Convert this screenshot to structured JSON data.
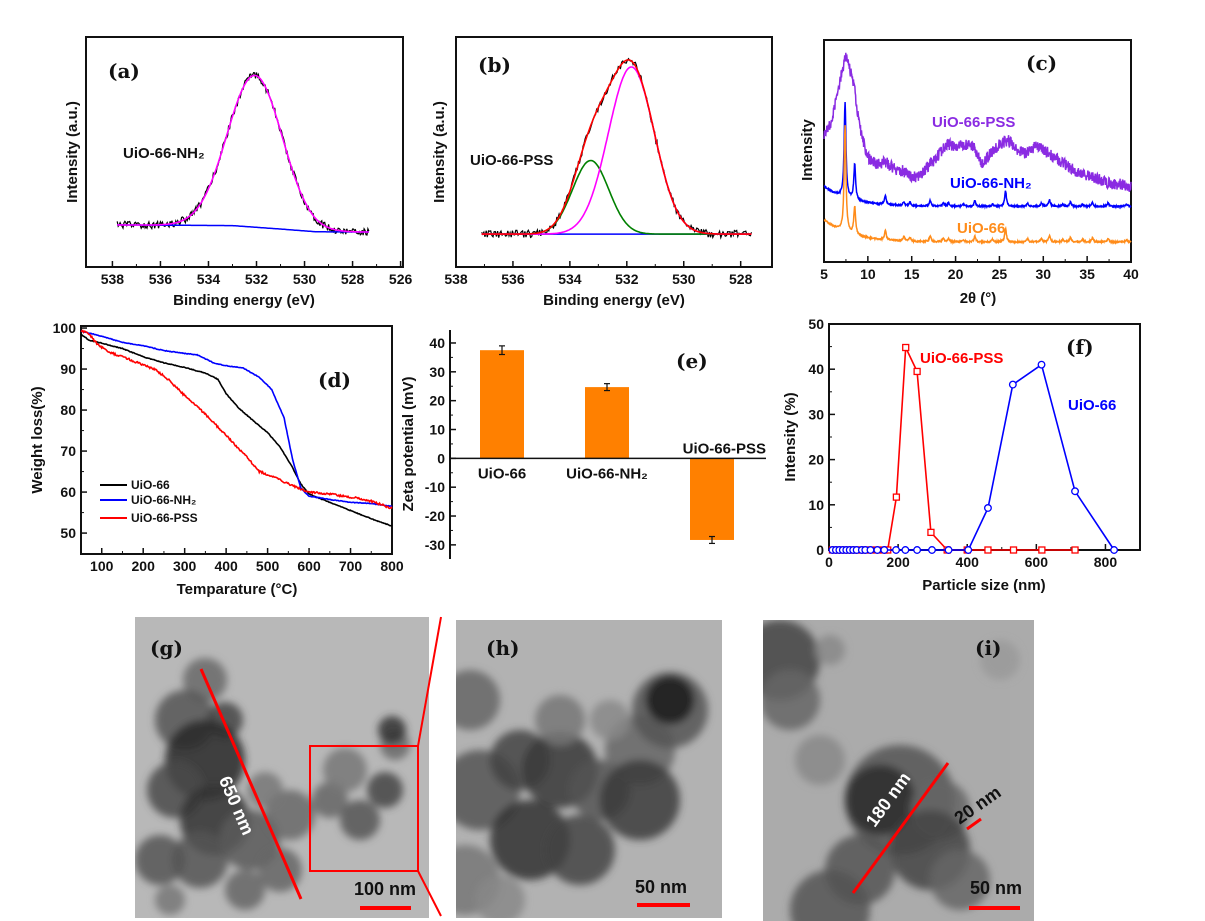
{
  "chart_data": [
    {
      "panel": "(a)",
      "type": "line",
      "xlabel": "Binding energy (eV)",
      "ylabel": "Intensity (a.u.)",
      "xlim": [
        539.1,
        525.9
      ],
      "x_reversed": true,
      "xticks": [
        538,
        536,
        534,
        532,
        530,
        528,
        526
      ],
      "yticks": [],
      "annotation": "UiO-66-NH₂",
      "data_range": [
        537.8,
        527.3
      ],
      "baseline": [
        [
          537.8,
          18.3
        ],
        [
          533,
          18
        ],
        [
          531,
          16.5
        ],
        [
          529.5,
          15.3
        ],
        [
          527.3,
          15.2
        ]
      ],
      "components": [
        {
          "center": 532.07,
          "fwhm": 2.7,
          "height": 66,
          "color": "#ff00ff"
        }
      ],
      "raw_color": "#000000",
      "baseline_color": "#0000ff"
    },
    {
      "panel": "(b)",
      "type": "line",
      "xlabel": "Binding energy (eV)",
      "ylabel": "Intensity (a.u.)",
      "xlim": [
        538,
        526.9
      ],
      "x_reversed": true,
      "xticks": [
        538,
        536,
        534,
        532,
        530,
        528
      ],
      "yticks": [],
      "annotation": "UiO-66-PSS",
      "data_range": [
        537.1,
        527.6
      ],
      "baseline": [
        [
          537.1,
          14.3
        ],
        [
          527.6,
          14.3
        ]
      ],
      "components": [
        {
          "center": 533.27,
          "fwhm": 1.5,
          "height": 32,
          "color": "#008000"
        },
        {
          "center": 531.84,
          "fwhm": 1.9,
          "height": 72.7,
          "color": "#ff00ff"
        }
      ],
      "fit_color": "#ff0000",
      "raw_color": "#000000",
      "baseline_color": "#0000ff"
    },
    {
      "panel": "(c)",
      "type": "line",
      "xlabel": "2θ (°)",
      "ylabel": "Intensity",
      "xlim": [
        5,
        40
      ],
      "xticks": [
        5,
        10,
        15,
        20,
        25,
        30,
        35,
        40
      ],
      "yticks": [],
      "series": [
        {
          "name": "UiO-66-PSS",
          "color": "#8a2be2",
          "points": [
            [
              5,
              57
            ],
            [
              5.5,
              60
            ],
            [
              6,
              66
            ],
            [
              6.5,
              75
            ],
            [
              7,
              85
            ],
            [
              7.5,
              93
            ],
            [
              8,
              86
            ],
            [
              8.5,
              78
            ],
            [
              9,
              62
            ],
            [
              10,
              47
            ],
            [
              11,
              44
            ],
            [
              12,
              45
            ],
            [
              13,
              42
            ],
            [
              14,
              41
            ],
            [
              15,
              38
            ],
            [
              16,
              39
            ],
            [
              17,
              44
            ],
            [
              18,
              48
            ],
            [
              19,
              53
            ],
            [
              20,
              52
            ],
            [
              21,
              53
            ],
            [
              22,
              52
            ],
            [
              23,
              44
            ],
            [
              24,
              49
            ],
            [
              25,
              53
            ],
            [
              26,
              55
            ],
            [
              27,
              50
            ],
            [
              28,
              49
            ],
            [
              29,
              52
            ],
            [
              30,
              51
            ],
            [
              31,
              48
            ],
            [
              32,
              45
            ],
            [
              33,
              43
            ],
            [
              34,
              40
            ],
            [
              35,
              39
            ],
            [
              36,
              38
            ],
            [
              37,
              36
            ],
            [
              38,
              35
            ],
            [
              39,
              35
            ],
            [
              40,
              34
            ]
          ]
        },
        {
          "name": "UiO-66-NH₂",
          "color": "#0000ff",
          "baseline": 25,
          "baseline_rise": 9,
          "peaks": [
            [
              7.4,
              43
            ],
            [
              8.5,
              16
            ],
            [
              12.0,
              4
            ],
            [
              14.1,
              1.5
            ],
            [
              14.8,
              1.5
            ],
            [
              17.1,
              2.5
            ],
            [
              18.6,
              1.5
            ],
            [
              19.2,
              1.5
            ],
            [
              20.9,
              1
            ],
            [
              22.2,
              2.5
            ],
            [
              24.2,
              1
            ],
            [
              25.7,
              7
            ],
            [
              28.2,
              1.5
            ],
            [
              29.8,
              1.5
            ],
            [
              30.7,
              3
            ],
            [
              32.2,
              1
            ],
            [
              33.1,
              2
            ],
            [
              34.5,
              1
            ],
            [
              35.6,
              2
            ],
            [
              37.4,
              1.5
            ],
            [
              39.5,
              1
            ]
          ]
        },
        {
          "name": "UiO-66",
          "color": "#ff8c1a",
          "baseline": 9,
          "baseline_rise": 10,
          "peaks": [
            [
              7.4,
              48
            ],
            [
              8.5,
              12.6
            ],
            [
              12.0,
              4
            ],
            [
              14.1,
              2
            ],
            [
              14.8,
              1.5
            ],
            [
              17.1,
              2.5
            ],
            [
              18.6,
              1.5
            ],
            [
              19.2,
              1.5
            ],
            [
              20.9,
              1
            ],
            [
              22.2,
              2.5
            ],
            [
              24.2,
              1
            ],
            [
              25.7,
              6
            ],
            [
              28.2,
              1.5
            ],
            [
              29.8,
              1.5
            ],
            [
              30.7,
              3
            ],
            [
              32.2,
              1
            ],
            [
              33.1,
              2
            ],
            [
              34.5,
              1
            ],
            [
              35.6,
              2
            ],
            [
              37.4,
              1.5
            ],
            [
              39.5,
              1
            ]
          ]
        }
      ]
    },
    {
      "panel": "(d)",
      "type": "line",
      "xlabel": "Temparature (°C)",
      "ylabel": "Weight loss(%)",
      "xlim": [
        50,
        800
      ],
      "ylim": [
        44.9,
        100.5
      ],
      "xticks": [
        100,
        200,
        300,
        400,
        500,
        600,
        700,
        800
      ],
      "yticks": [
        50,
        60,
        70,
        80,
        90,
        100
      ],
      "legend": "bottom-left",
      "series": [
        {
          "name": "UiO-66",
          "color": "#000000",
          "points": [
            [
              50,
              98.5
            ],
            [
              70,
              97
            ],
            [
              100,
              96.3
            ],
            [
              150,
              95
            ],
            [
              200,
              93
            ],
            [
              250,
              91.5
            ],
            [
              300,
              90.4
            ],
            [
              350,
              89
            ],
            [
              380,
              87.5
            ],
            [
              400,
              84
            ],
            [
              430,
              80.5
            ],
            [
              470,
              77
            ],
            [
              500,
              74.5
            ],
            [
              530,
              71
            ],
            [
              560,
              66
            ],
            [
              580,
              62
            ],
            [
              600,
              59.5
            ],
            [
              650,
              57.5
            ],
            [
              700,
              55.5
            ],
            [
              750,
              53.5
            ],
            [
              800,
              51.7
            ]
          ]
        },
        {
          "name": "UiO-66-NH₂",
          "color": "#0000ff",
          "points": [
            [
              50,
              99.3
            ],
            [
              100,
              98
            ],
            [
              150,
              96.5
            ],
            [
              200,
              95.7
            ],
            [
              250,
              94.5
            ],
            [
              300,
              93.8
            ],
            [
              330,
              93.5
            ],
            [
              370,
              91.5
            ],
            [
              400,
              90.8
            ],
            [
              440,
              90.3
            ],
            [
              480,
              88
            ],
            [
              510,
              85
            ],
            [
              540,
              78
            ],
            [
              560,
              68
            ],
            [
              580,
              61
            ],
            [
              600,
              59
            ],
            [
              650,
              58.2
            ],
            [
              700,
              57.5
            ],
            [
              750,
              57.2
            ],
            [
              800,
              56.5
            ]
          ]
        },
        {
          "name": "UiO-66-PSS",
          "color": "#ff0000",
          "points": [
            [
              50,
              99.5
            ],
            [
              70,
              98.5
            ],
            [
              90,
              96
            ],
            [
              120,
              94
            ],
            [
              150,
              93
            ],
            [
              200,
              91
            ],
            [
              230,
              89.8
            ],
            [
              260,
              87.5
            ],
            [
              300,
              83.5
            ],
            [
              350,
              79
            ],
            [
              400,
              73.8
            ],
            [
              450,
              68.5
            ],
            [
              480,
              65
            ],
            [
              520,
              63.5
            ],
            [
              560,
              61.5
            ],
            [
              600,
              60
            ],
            [
              650,
              59.5
            ],
            [
              700,
              58.8
            ],
            [
              750,
              57.8
            ],
            [
              800,
              56
            ]
          ]
        }
      ]
    },
    {
      "panel": "(e)",
      "type": "bar",
      "ylabel": "Zeta potential (mV)",
      "ylim": [
        -34.9,
        44.5
      ],
      "yticks": [
        -30,
        -20,
        -10,
        0,
        10,
        20,
        30,
        40
      ],
      "categories": [
        "UiO-66",
        "UiO-66-NH₂",
        "UiO-66-PSS"
      ],
      "values": [
        37.5,
        24.7,
        -28.3
      ],
      "errors": [
        1.5,
        1.2,
        1.2
      ],
      "bar_color": "#ff8000"
    },
    {
      "panel": "(f)",
      "type": "line",
      "xlabel": "Particle size (nm)",
      "ylabel": "Intensity (%)",
      "xlim": [
        0,
        900
      ],
      "ylim": [
        0,
        50
      ],
      "xticks": [
        0,
        200,
        400,
        600,
        800
      ],
      "yticks": [
        0,
        10,
        20,
        30,
        40,
        50
      ],
      "series": [
        {
          "name": "UiO-66-PSS",
          "color": "#ff0000",
          "marker": "square",
          "points": [
            [
              10,
              0
            ],
            [
              20,
              0
            ],
            [
              30,
              0
            ],
            [
              40,
              0
            ],
            [
              50,
              0
            ],
            [
              60,
              0
            ],
            [
              70,
              0
            ],
            [
              80,
              0
            ],
            [
              95,
              0
            ],
            [
              105,
              0
            ],
            [
              120,
              0
            ],
            [
              140,
              0
            ],
            [
              160,
              0
            ],
            [
              170,
              0
            ],
            [
              195,
              11.7
            ],
            [
              222,
              44.8
            ],
            [
              255,
              39.5
            ],
            [
              295,
              3.9
            ],
            [
              342,
              0
            ],
            [
              400,
              0
            ],
            [
              460,
              0
            ],
            [
              534,
              0
            ],
            [
              616,
              0
            ],
            [
              712,
              0
            ]
          ]
        },
        {
          "name": "UiO-66",
          "color": "#0000ff",
          "marker": "circle",
          "points": [
            [
              10,
              0
            ],
            [
              20,
              0
            ],
            [
              30,
              0
            ],
            [
              40,
              0
            ],
            [
              50,
              0
            ],
            [
              60,
              0
            ],
            [
              70,
              0
            ],
            [
              80,
              0
            ],
            [
              95,
              0
            ],
            [
              105,
              0
            ],
            [
              120,
              0
            ],
            [
              140,
              0
            ],
            [
              160,
              0
            ],
            [
              194,
              0
            ],
            [
              221,
              0
            ],
            [
              255,
              0
            ],
            [
              298,
              0
            ],
            [
              346,
              0
            ],
            [
              403,
              0
            ],
            [
              460,
              9.3
            ],
            [
              532,
              36.6
            ],
            [
              615,
              41
            ],
            [
              712,
              13
            ],
            [
              825,
              0
            ]
          ]
        }
      ]
    }
  ],
  "tem": {
    "g": {
      "label": "(g)",
      "line_label": "650 nm",
      "scale_bar": "100 nm"
    },
    "h": {
      "label": "(h)",
      "scale_bar": "50 nm"
    },
    "i": {
      "label": "(i)",
      "line_label": "180 nm",
      "line_label_small": "20 nm",
      "scale_bar": "50 nm"
    },
    "accent_color": "#ff0000"
  }
}
